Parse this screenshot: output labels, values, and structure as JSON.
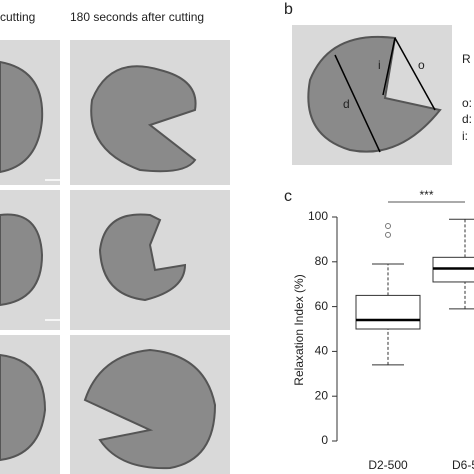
{
  "figure": {
    "left_header": "cutting",
    "right_header": "180 seconds after cutting",
    "panel_b": "b",
    "panel_c": "c",
    "b_image_labels": [
      "i",
      "o",
      "d"
    ],
    "b_side_title": "R",
    "b_side_items": [
      "o:",
      "d:",
      "i:"
    ]
  },
  "chart_data": {
    "type": "box",
    "y_label": "Relaxation Index (%)",
    "categories": [
      "D2-500",
      "D6-5"
    ],
    "boxes": [
      {
        "whisker_low": 34,
        "q1": 50,
        "median": 54,
        "q3": 65,
        "whisker_high": 79,
        "outliers": [
          96,
          92
        ]
      },
      {
        "whisker_low": 59,
        "q1": 71,
        "median": 77,
        "q3": 82,
        "whisker_high": 99,
        "outliers": []
      }
    ],
    "ylim": [
      0,
      100
    ],
    "yticks": [
      0,
      20,
      40,
      60,
      80,
      100
    ],
    "annotation": "***",
    "color": "#333333"
  }
}
